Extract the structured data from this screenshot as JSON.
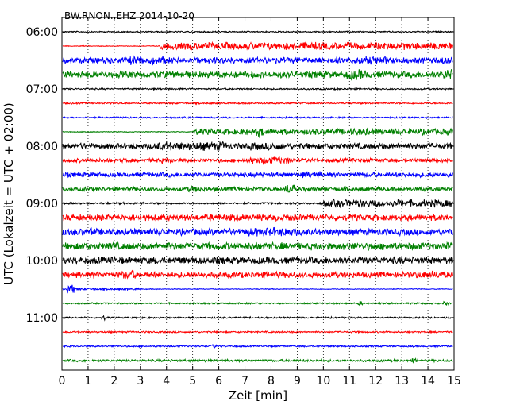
{
  "chart_data": {
    "type": "line",
    "title": "BW.RNON..EHZ 2014-10-20",
    "xlabel": "Zeit  [min]",
    "ylabel": "UTC (Lokalzeit = UTC + 02:00)",
    "xlim": [
      0,
      15
    ],
    "xticks": [
      "0",
      "1",
      "2",
      "3",
      "4",
      "5",
      "6",
      "7",
      "8",
      "9",
      "10",
      "11",
      "12",
      "13",
      "14",
      "15"
    ],
    "yticks": [
      {
        "label": "06:00",
        "hour_offset": 0
      },
      {
        "label": "07:00",
        "hour_offset": 1
      },
      {
        "label": "08:00",
        "hour_offset": 2
      },
      {
        "label": "09:00",
        "hour_offset": 3
      },
      {
        "label": "10:00",
        "hour_offset": 4
      },
      {
        "label": "11:00",
        "hour_offset": 5
      }
    ],
    "grid": {
      "vertical": true,
      "horizontal": false,
      "style": "dotted"
    },
    "trace_colors": [
      "#000000",
      "#ff0000",
      "#0000ff",
      "#008000"
    ],
    "traces_per_hour": 4,
    "traces": [
      {
        "start": "06:00",
        "color": "#000000",
        "amp": 0.1,
        "events": [
          [
            0,
            15,
            0.1
          ]
        ]
      },
      {
        "start": "06:15",
        "color": "#ff0000",
        "amp": 0.08,
        "events": [
          [
            3.75,
            15,
            0.55
          ]
        ]
      },
      {
        "start": "06:30",
        "color": "#0000ff",
        "amp": 0.45,
        "events": [
          [
            0,
            15,
            0.45
          ],
          [
            2.5,
            4,
            0.65
          ],
          [
            11,
            12.5,
            0.6
          ],
          [
            14.5,
            15,
            0.6
          ]
        ]
      },
      {
        "start": "06:45",
        "color": "#008000",
        "amp": 0.5,
        "events": [
          [
            0,
            15,
            0.5
          ],
          [
            10.8,
            11.6,
            0.75
          ],
          [
            14.6,
            15,
            0.9
          ]
        ]
      },
      {
        "start": "07:00",
        "color": "#000000",
        "amp": 0.1,
        "events": [
          [
            0,
            15,
            0.12
          ]
        ]
      },
      {
        "start": "07:15",
        "color": "#ff0000",
        "amp": 0.1,
        "events": [
          [
            0,
            15,
            0.12
          ]
        ]
      },
      {
        "start": "07:30",
        "color": "#0000ff",
        "amp": 0.1,
        "events": [
          [
            0,
            15,
            0.12
          ]
        ]
      },
      {
        "start": "07:45",
        "color": "#008000",
        "amp": 0.1,
        "events": [
          [
            5,
            15,
            0.45
          ],
          [
            7.4,
            7.8,
            0.8
          ],
          [
            11,
            12,
            0.55
          ]
        ]
      },
      {
        "start": "08:00",
        "color": "#000000",
        "amp": 0.5,
        "events": [
          [
            0,
            15,
            0.45
          ],
          [
            3.5,
            6.3,
            0.65
          ],
          [
            7.2,
            8.4,
            0.6
          ]
        ]
      },
      {
        "start": "08:15",
        "color": "#ff0000",
        "amp": 0.3,
        "events": [
          [
            0,
            15,
            0.3
          ],
          [
            7.2,
            8.8,
            0.55
          ],
          [
            3.8,
            4.3,
            0.45
          ]
        ]
      },
      {
        "start": "08:30",
        "color": "#0000ff",
        "amp": 0.35,
        "events": [
          [
            0,
            15,
            0.35
          ],
          [
            9.2,
            10,
            0.5
          ]
        ]
      },
      {
        "start": "08:45",
        "color": "#008000",
        "amp": 0.3,
        "events": [
          [
            0,
            15,
            0.3
          ],
          [
            8.5,
            8.9,
            0.75
          ],
          [
            4.8,
            5.3,
            0.45
          ]
        ]
      },
      {
        "start": "09:00",
        "color": "#000000",
        "amp": 0.12,
        "events": [
          [
            0,
            10,
            0.15
          ],
          [
            10,
            15,
            0.55
          ]
        ]
      },
      {
        "start": "09:15",
        "color": "#ff0000",
        "amp": 0.45,
        "events": [
          [
            0,
            15,
            0.48
          ]
        ]
      },
      {
        "start": "09:30",
        "color": "#0000ff",
        "amp": 0.5,
        "events": [
          [
            0,
            15,
            0.5
          ],
          [
            7,
            9,
            0.65
          ]
        ]
      },
      {
        "start": "09:45",
        "color": "#008000",
        "amp": 0.5,
        "events": [
          [
            0,
            15,
            0.55
          ]
        ]
      },
      {
        "start": "10:00",
        "color": "#000000",
        "amp": 0.5,
        "events": [
          [
            0,
            15,
            0.52
          ]
        ]
      },
      {
        "start": "10:15",
        "color": "#ff0000",
        "amp": 0.45,
        "events": [
          [
            0,
            15,
            0.45
          ],
          [
            2.3,
            2.8,
            0.7
          ],
          [
            13.5,
            14.5,
            0.6
          ]
        ]
      },
      {
        "start": "10:30",
        "color": "#0000ff",
        "amp": 0.08,
        "events": [
          [
            0,
            3,
            0.15
          ],
          [
            0.2,
            0.5,
            0.7
          ]
        ]
      },
      {
        "start": "10:45",
        "color": "#008000",
        "amp": 0.1,
        "events": [
          [
            0,
            15,
            0.12
          ],
          [
            11.3,
            11.5,
            0.35
          ],
          [
            14.6,
            14.8,
            0.35
          ]
        ]
      },
      {
        "start": "11:00",
        "color": "#000000",
        "amp": 0.1,
        "events": [
          [
            0,
            15,
            0.12
          ],
          [
            1.5,
            1.7,
            0.35
          ]
        ]
      },
      {
        "start": "11:15",
        "color": "#ff0000",
        "amp": 0.1,
        "events": [
          [
            0,
            15,
            0.12
          ]
        ]
      },
      {
        "start": "11:30",
        "color": "#0000ff",
        "amp": 0.1,
        "events": [
          [
            0,
            15,
            0.12
          ],
          [
            5.7,
            5.9,
            0.3
          ]
        ]
      },
      {
        "start": "11:45",
        "color": "#008000",
        "amp": 0.15,
        "events": [
          [
            0,
            15,
            0.18
          ],
          [
            13.4,
            13.6,
            0.35
          ]
        ]
      }
    ]
  }
}
